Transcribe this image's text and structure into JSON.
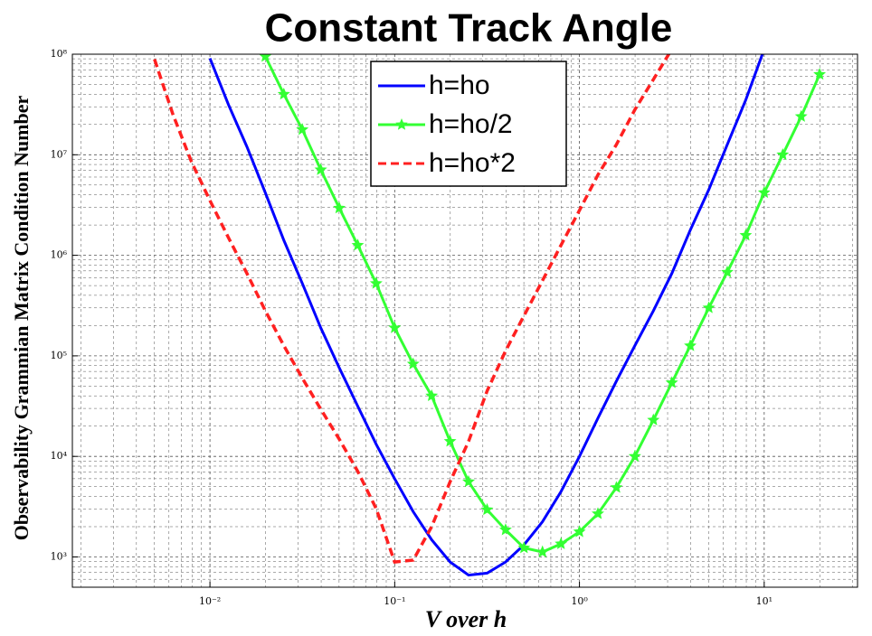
{
  "chart_data": {
    "type": "line",
    "title": "Constant Track Angle",
    "x_label": "V over h",
    "y_label": "Observability Grammian Matrix Condition Number",
    "x_scale": "log",
    "y_scale": "log",
    "grid": true,
    "minor_grid": true,
    "legend": "top",
    "xlim": [
      0.0018,
      32
    ],
    "ylim": [
      500,
      100000000
    ],
    "xticks": [
      {
        "value": 0.01,
        "label": "10⁻²"
      },
      {
        "value": 0.1,
        "label": "10⁻¹"
      },
      {
        "value": 1,
        "label": "10⁰"
      },
      {
        "value": 10,
        "label": "10¹"
      }
    ],
    "yticks": [
      {
        "value": 1000,
        "label": "10³"
      },
      {
        "value": 10000,
        "label": "10⁴"
      },
      {
        "value": 100000,
        "label": "10⁵"
      },
      {
        "value": 1000000,
        "label": "10⁶"
      },
      {
        "value": 10000000,
        "label": "10⁷"
      },
      {
        "value": 100000000,
        "label": "10⁸"
      }
    ],
    "x": [
      0.005012,
      0.00631,
      0.007943,
      0.01,
      0.01259,
      0.01585,
      0.01995,
      0.02512,
      0.03162,
      0.03981,
      0.05012,
      0.0631,
      0.07943,
      0.1,
      0.1259,
      0.1585,
      0.1995,
      0.2512,
      0.3162,
      0.3981,
      0.5012,
      0.631,
      0.7943,
      1,
      1.259,
      1.585,
      1.995,
      2.512,
      3.162,
      3.981,
      5.012,
      6.31,
      7.943,
      10,
      12.59,
      15.85,
      19.95
    ],
    "series": [
      {
        "name": "h=ho",
        "color": "#0000ff",
        "style": "solid",
        "marker": "none",
        "values": [
          null,
          null,
          null,
          91000000.0,
          31600000.0,
          12000000.0,
          4170000.0,
          1410000.0,
          525000.0,
          190000.0,
          76000.0,
          31600.0,
          13200.0,
          6000,
          2820,
          1480,
          890,
          660,
          690,
          890,
          1320,
          2240,
          4470,
          10000,
          24000.0,
          56000.0,
          126000.0,
          280000.0,
          660000.0,
          1780000.0,
          4500000.0,
          12600000.0,
          35000000.0,
          112000000.0,
          null,
          null,
          null
        ]
      },
      {
        "name": "h=ho/2",
        "color": "#33ff33",
        "style": "solid",
        "marker": "star",
        "values": [
          null,
          null,
          null,
          null,
          null,
          null,
          95000000.0,
          40000000.0,
          17800000.0,
          7100000.0,
          2950000.0,
          1260000.0,
          525000.0,
          190000.0,
          83000.0,
          40000.0,
          14100.0,
          5600,
          2950,
          1860,
          1230,
          1120,
          1350,
          1780,
          2690,
          4900,
          10000,
          23000.0,
          54000.0,
          126000.0,
          300000.0,
          680000.0,
          1580000.0,
          4200000.0,
          10000000.0,
          24000000.0,
          63000000.0
        ]
      },
      {
        "name": "h=ho*2",
        "color": "#ff2020",
        "style": "dashed",
        "marker": "none",
        "values": [
          89000000.0,
          25000000.0,
          8500000.0,
          3500000.0,
          1500000.0,
          660000.0,
          280000.0,
          126000.0,
          60000.0,
          29500.0,
          14800.0,
          7100,
          3020,
          890,
          930,
          2000,
          5600,
          14100.0,
          44700.0,
          112000.0,
          251000.0,
          560000.0,
          1260000.0,
          2800000.0,
          6300000.0,
          12600000.0,
          28000000.0,
          56000000.0,
          112000000.0,
          null,
          null,
          null,
          null,
          null,
          null,
          null,
          null
        ]
      }
    ]
  }
}
